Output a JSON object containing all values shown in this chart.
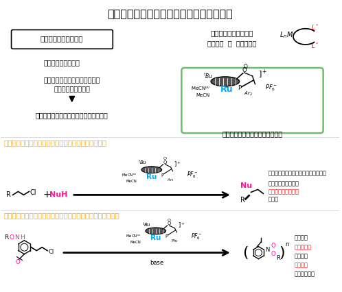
{
  "title": "面不斉錯体を利用した不斉触媒反応の開発",
  "bg_color": "#ffffff",
  "box1_text": "光学活性有機金属錯体",
  "text_left1": "不斉触媒として重要",
  "text_left2a": "金属錯体に特徴的な不斉構造を",
  "text_left2b": "活用した新しい触媒",
  "text_left3": "従来にない高い立体選択性が期待される",
  "text_right1": "従来のキラル金属触媒",
  "text_right2": "金属錯体  ＋  不斉配位子",
  "text_cp_label": "面不斉シクロペンタジエニル錯体",
  "section1_title": "高位置及びエナンチオ選択的な不斉アリル位置換反応",
  "section2_title": "不斉アリル位置換反応を利用した新規光学活性高分子の合成",
  "bullet1a": "・酸素、窒素、炭素求核剤に適用可能",
  "bullet1b": "・温和な反応条件で",
  "bullet1c_red": "高い反応性と選択性",
  "bullet1d": "を実現",
  "bullet2a": "・非常に",
  "bullet2b": "高い選択性",
  "bullet2c": "で主鎖の",
  "bullet2d": "不斉炭素",
  "bullet2e": "の制御に成功",
  "orange_color": "#FFA500",
  "red_color": "#FF0000",
  "Ru_color": "#00AAFF",
  "pink_color": "#FF1493",
  "green_box_color": "#6BBF6B"
}
